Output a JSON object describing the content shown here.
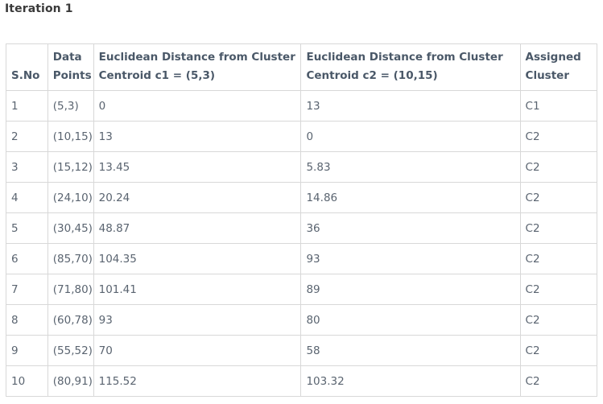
{
  "title": "Iteration 1",
  "table": {
    "headers": {
      "sno": "S.No",
      "data_points_line1": "Data",
      "data_points_line2": "Points",
      "dist_c1_line1": "Euclidean Distance from Cluster",
      "dist_c1_line2": "Centroid c1 = (5,3)",
      "dist_c2_line1": "Euclidean Distance from Cluster",
      "dist_c2_line2": "Centroid c2 = (10,15)",
      "assigned_line1": "Assigned",
      "assigned_line2": "Cluster"
    },
    "rows": [
      {
        "sno": "1",
        "point": "(5,3)",
        "dist_c1": "0",
        "dist_c2": "13",
        "cluster": "C1"
      },
      {
        "sno": "2",
        "point": "(10,15)",
        "dist_c1": "13",
        "dist_c2": "0",
        "cluster": "C2"
      },
      {
        "sno": "3",
        "point": "(15,12)",
        "dist_c1": "13.45",
        "dist_c2": "5.83",
        "cluster": "C2"
      },
      {
        "sno": "4",
        "point": "(24,10)",
        "dist_c1": "20.24",
        "dist_c2": "14.86",
        "cluster": "C2"
      },
      {
        "sno": "5",
        "point": "(30,45)",
        "dist_c1": "48.87",
        "dist_c2": "36",
        "cluster": "C2"
      },
      {
        "sno": "6",
        "point": "(85,70)",
        "dist_c1": "104.35",
        "dist_c2": "93",
        "cluster": "C2"
      },
      {
        "sno": "7",
        "point": "(71,80)",
        "dist_c1": "101.41",
        "dist_c2": "89",
        "cluster": "C2"
      },
      {
        "sno": "8",
        "point": "(60,78)",
        "dist_c1": "93",
        "dist_c2": "80",
        "cluster": "C2"
      },
      {
        "sno": "9",
        "point": "(55,52)",
        "dist_c1": "70",
        "dist_c2": "58",
        "cluster": "C2"
      },
      {
        "sno": "10",
        "point": "(80,91)",
        "dist_c1": "115.52",
        "dist_c2": "103.32",
        "cluster": "C2"
      }
    ]
  }
}
